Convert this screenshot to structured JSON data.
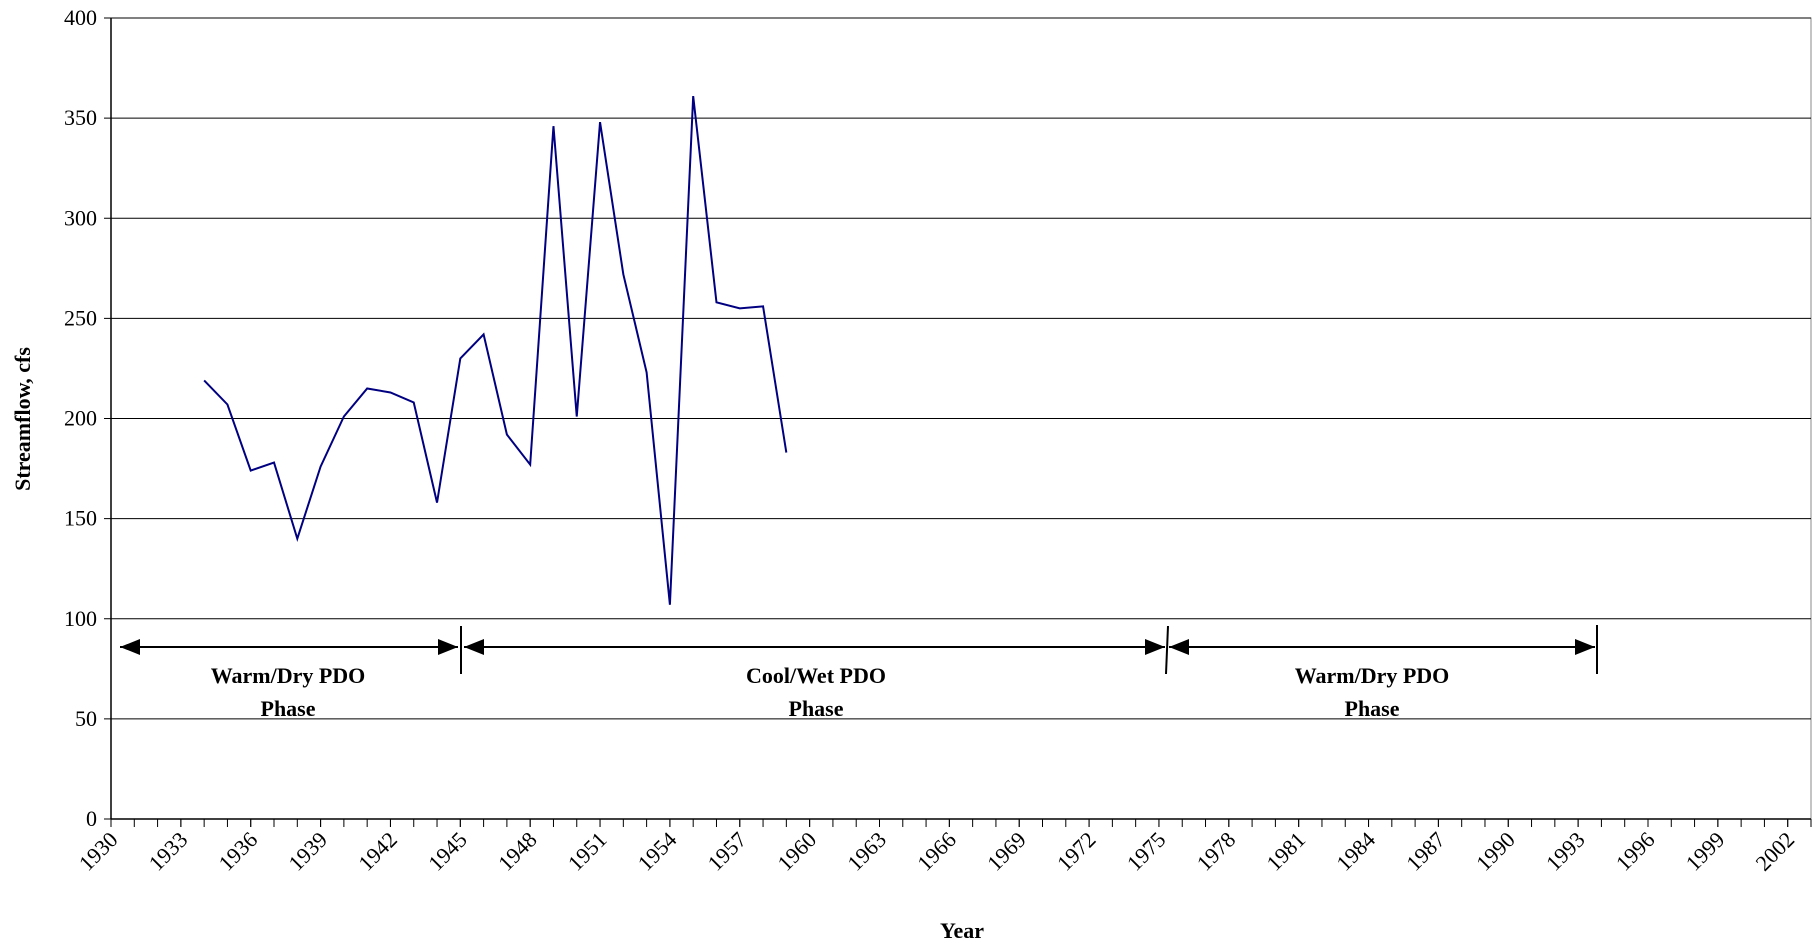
{
  "chart_data": {
    "type": "line",
    "x": [
      1934,
      1935,
      1936,
      1937,
      1938,
      1939,
      1940,
      1941,
      1942,
      1943,
      1944,
      1945,
      1946,
      1947,
      1948,
      1949,
      1950,
      1951,
      1952,
      1953,
      1954,
      1955,
      1956,
      1957,
      1958,
      1959
    ],
    "series": [
      {
        "name": "Streamflow",
        "color": "#000080",
        "values": [
          219,
          207,
          174,
          178,
          140,
          176,
          201,
          215,
          213,
          208,
          158,
          230,
          242,
          192,
          177,
          346,
          201,
          348,
          272,
          223,
          107,
          361,
          258,
          255,
          256,
          183
        ]
      }
    ],
    "xlabel": "Year",
    "ylabel": "Streamflow, cfs",
    "xlim": [
      1930,
      2003
    ],
    "xticks": [
      1930,
      1933,
      1936,
      1939,
      1942,
      1945,
      1948,
      1951,
      1954,
      1957,
      1960,
      1963,
      1966,
      1969,
      1972,
      1975,
      1978,
      1981,
      1984,
      1987,
      1990,
      1993,
      1996,
      1999,
      2002
    ],
    "ylim": [
      0,
      400
    ],
    "yticks": [
      0,
      50,
      100,
      150,
      200,
      250,
      300,
      350,
      400
    ],
    "grid": true,
    "annotations": [
      {
        "line1": "Warm/Dry PDO",
        "line2": "Phase"
      },
      {
        "line1": "Cool/Wet PDO",
        "line2": "Phase"
      },
      {
        "line1": "Warm/Dry PDO",
        "line2": "Phase"
      }
    ]
  }
}
